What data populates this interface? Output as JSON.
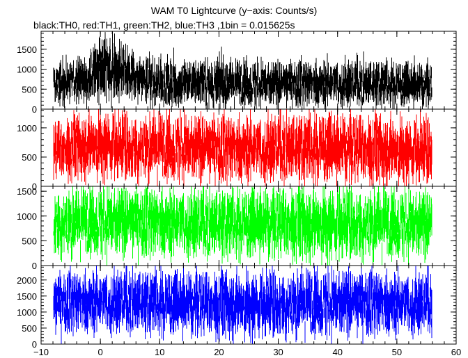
{
  "title": "WAM T0 Lightcurve (y−axis: Counts/s)",
  "subtitle": "black:TH0, red:TH1, green:TH2, blue:TH3 ,1bin = 0.015625s",
  "chart_data": {
    "type": "line",
    "x_range": [
      -10,
      60
    ],
    "x_ticks": [
      "−10",
      "0",
      "10",
      "20",
      "30",
      "40",
      "50",
      "60"
    ],
    "x_tick_values": [
      -10,
      0,
      10,
      20,
      30,
      40,
      50,
      60
    ],
    "bin_size_s": 0.015625,
    "panels": [
      {
        "series_label": "TH0",
        "color": "#000000",
        "y_range": [
          0,
          1950
        ],
        "y_ticks": [
          0,
          500,
          1000,
          1500
        ],
        "x_start": -8,
        "x_end": 56,
        "summary": {
          "baseline_mean": 580,
          "typical_low": 120,
          "typical_high": 1100,
          "peak": 1950
        },
        "envelope": [
          {
            "x": -8,
            "low": 150,
            "high": 1200
          },
          {
            "x": -2,
            "low": 200,
            "high": 1300
          },
          {
            "x": 0,
            "low": 350,
            "high": 1950
          },
          {
            "x": 1,
            "low": 300,
            "high": 1800
          },
          {
            "x": 3,
            "low": 250,
            "high": 1700
          },
          {
            "x": 5,
            "low": 200,
            "high": 1500
          },
          {
            "x": 10,
            "low": 120,
            "high": 1300
          },
          {
            "x": 20,
            "low": 100,
            "high": 1250
          },
          {
            "x": 30,
            "low": 100,
            "high": 1200
          },
          {
            "x": 40,
            "low": 100,
            "high": 1250
          },
          {
            "x": 50,
            "low": 100,
            "high": 1200
          },
          {
            "x": 56,
            "low": 100,
            "high": 1150
          }
        ]
      },
      {
        "series_label": "TH1",
        "color": "#ff0000",
        "y_range": [
          0,
          1320
        ],
        "y_ticks": [
          0,
          500,
          1000
        ],
        "x_start": -8,
        "x_end": 56,
        "summary": {
          "baseline_mean": 560,
          "typical_low": 150,
          "typical_high": 1000,
          "peak": 1320
        },
        "envelope": [
          {
            "x": -8,
            "low": 150,
            "high": 1100
          },
          {
            "x": 0,
            "low": 200,
            "high": 1320
          },
          {
            "x": 5,
            "low": 150,
            "high": 1250
          },
          {
            "x": 20,
            "low": 100,
            "high": 1200
          },
          {
            "x": 40,
            "low": 100,
            "high": 1250
          },
          {
            "x": 56,
            "low": 100,
            "high": 1150
          }
        ]
      },
      {
        "series_label": "TH2",
        "color": "#00ff00",
        "y_range": [
          0,
          1600
        ],
        "y_ticks": [
          0,
          500,
          1000,
          1500
        ],
        "x_start": -8,
        "x_end": 56,
        "summary": {
          "baseline_mean": 820,
          "typical_low": 250,
          "typical_high": 1350,
          "peak": 1600
        },
        "envelope": [
          {
            "x": -8,
            "low": 200,
            "high": 1500
          },
          {
            "x": 0,
            "low": 200,
            "high": 1550
          },
          {
            "x": 20,
            "low": 150,
            "high": 1500
          },
          {
            "x": 40,
            "low": 150,
            "high": 1550
          },
          {
            "x": 56,
            "low": 150,
            "high": 1450
          }
        ]
      },
      {
        "series_label": "TH3",
        "color": "#0000ff",
        "y_range": [
          0,
          2450
        ],
        "y_ticks": [
          0,
          500,
          1000,
          1500,
          2000
        ],
        "x_start": -8,
        "x_end": 56,
        "summary": {
          "baseline_mean": 1200,
          "typical_low": 500,
          "typical_high": 1950,
          "peak": 2400
        },
        "envelope": [
          {
            "x": -8,
            "low": 400,
            "high": 2200
          },
          {
            "x": 0,
            "low": 400,
            "high": 2300
          },
          {
            "x": 20,
            "low": 300,
            "high": 2250
          },
          {
            "x": 40,
            "low": 300,
            "high": 2300
          },
          {
            "x": 56,
            "low": 350,
            "high": 2200
          }
        ]
      }
    ]
  }
}
